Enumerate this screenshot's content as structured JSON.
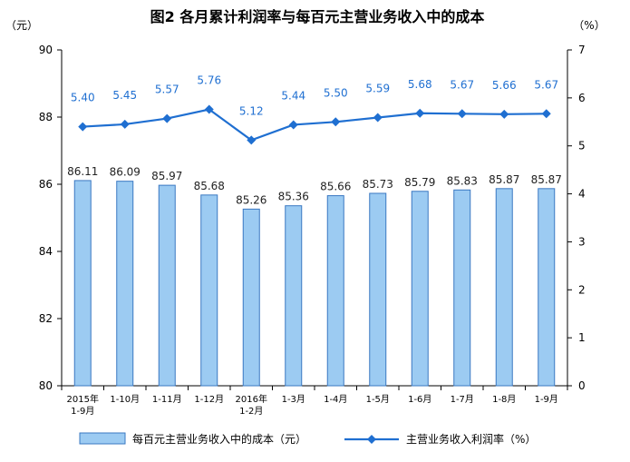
{
  "chart_data": {
    "type": "bar+line",
    "title": "图2 各月累计利润率与每百元主营业务收入中的成本",
    "left_unit": "（元）",
    "right_unit": "（%）",
    "categories": [
      [
        "2015年",
        "1-9月"
      ],
      [
        "1-10月"
      ],
      [
        "1-11月"
      ],
      [
        "1-12月"
      ],
      [
        "2016年",
        "1-2月"
      ],
      [
        "1-3月"
      ],
      [
        "1-4月"
      ],
      [
        "1-5月"
      ],
      [
        "1-6月"
      ],
      [
        "1-7月"
      ],
      [
        "1-8月"
      ],
      [
        "1-9月"
      ]
    ],
    "series": [
      {
        "name": "每百元主营业务收入中的成本（元）",
        "type": "bar",
        "axis": "left",
        "values": [
          86.11,
          86.09,
          85.97,
          85.68,
          85.26,
          85.36,
          85.66,
          85.73,
          85.79,
          85.83,
          85.87,
          85.87
        ],
        "labels": [
          "86.11",
          "86.09",
          "85.97",
          "85.68",
          "85.26",
          "85.36",
          "85.66",
          "85.73",
          "85.79",
          "85.83",
          "85.87",
          "85.87"
        ]
      },
      {
        "name": "主营业务收入利润率（%）",
        "type": "line",
        "axis": "right",
        "values": [
          5.4,
          5.45,
          5.57,
          5.76,
          5.12,
          5.44,
          5.5,
          5.59,
          5.68,
          5.67,
          5.66,
          5.67
        ],
        "labels": [
          "5.40",
          "5.45",
          "5.57",
          "5.76",
          "5.12",
          "5.44",
          "5.50",
          "5.59",
          "5.68",
          "5.67",
          "5.66",
          "5.67"
        ]
      }
    ],
    "y_left": {
      "min": 80,
      "max": 90,
      "ticks": [
        "80",
        "82",
        "84",
        "86",
        "88",
        "90"
      ]
    },
    "y_right": {
      "min": 0,
      "max": 7,
      "ticks": [
        "0",
        "1",
        "2",
        "3",
        "4",
        "5",
        "6",
        "7"
      ]
    },
    "grid": false,
    "legend_position": "bottom",
    "colors": {
      "bar_fill": "#9ccbf2",
      "bar_stroke": "#3a78c2",
      "line": "#1f6fd1",
      "label_line": "#1f6fd1"
    }
  }
}
